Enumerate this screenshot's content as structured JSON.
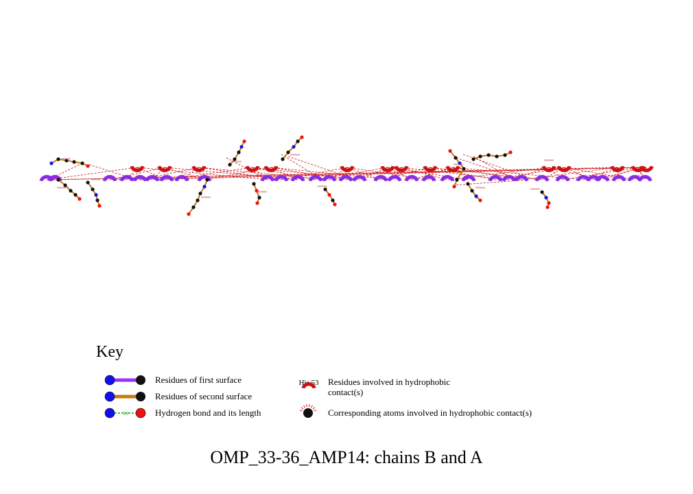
{
  "colors": {
    "surface1": "#9b30ff",
    "surface2": "#c87a0a",
    "hbond": "#1a9a1a",
    "hydrophobic": "#cc1111",
    "nitrogen": "#1010ee",
    "oxygen": "#ee1010",
    "carbon": "#111111",
    "label_blue": "#3030c0",
    "label_red": "#c01010"
  },
  "key": {
    "title": "Key",
    "surface1_label": "Residues of first surface",
    "surface2_label": "Residues of second surface",
    "hbond_label": "Hydrogen bond and its length",
    "hbond_length": "3.0",
    "hydrophobic_example": "His 53",
    "hydrophobic_label": "Residues involved in hydrophobic contact(s)",
    "atoms_label": "Corresponding atoms involved in hydrophobic contact(s)"
  },
  "caption": "OMP_33-36_AMP14: chains B and A"
}
